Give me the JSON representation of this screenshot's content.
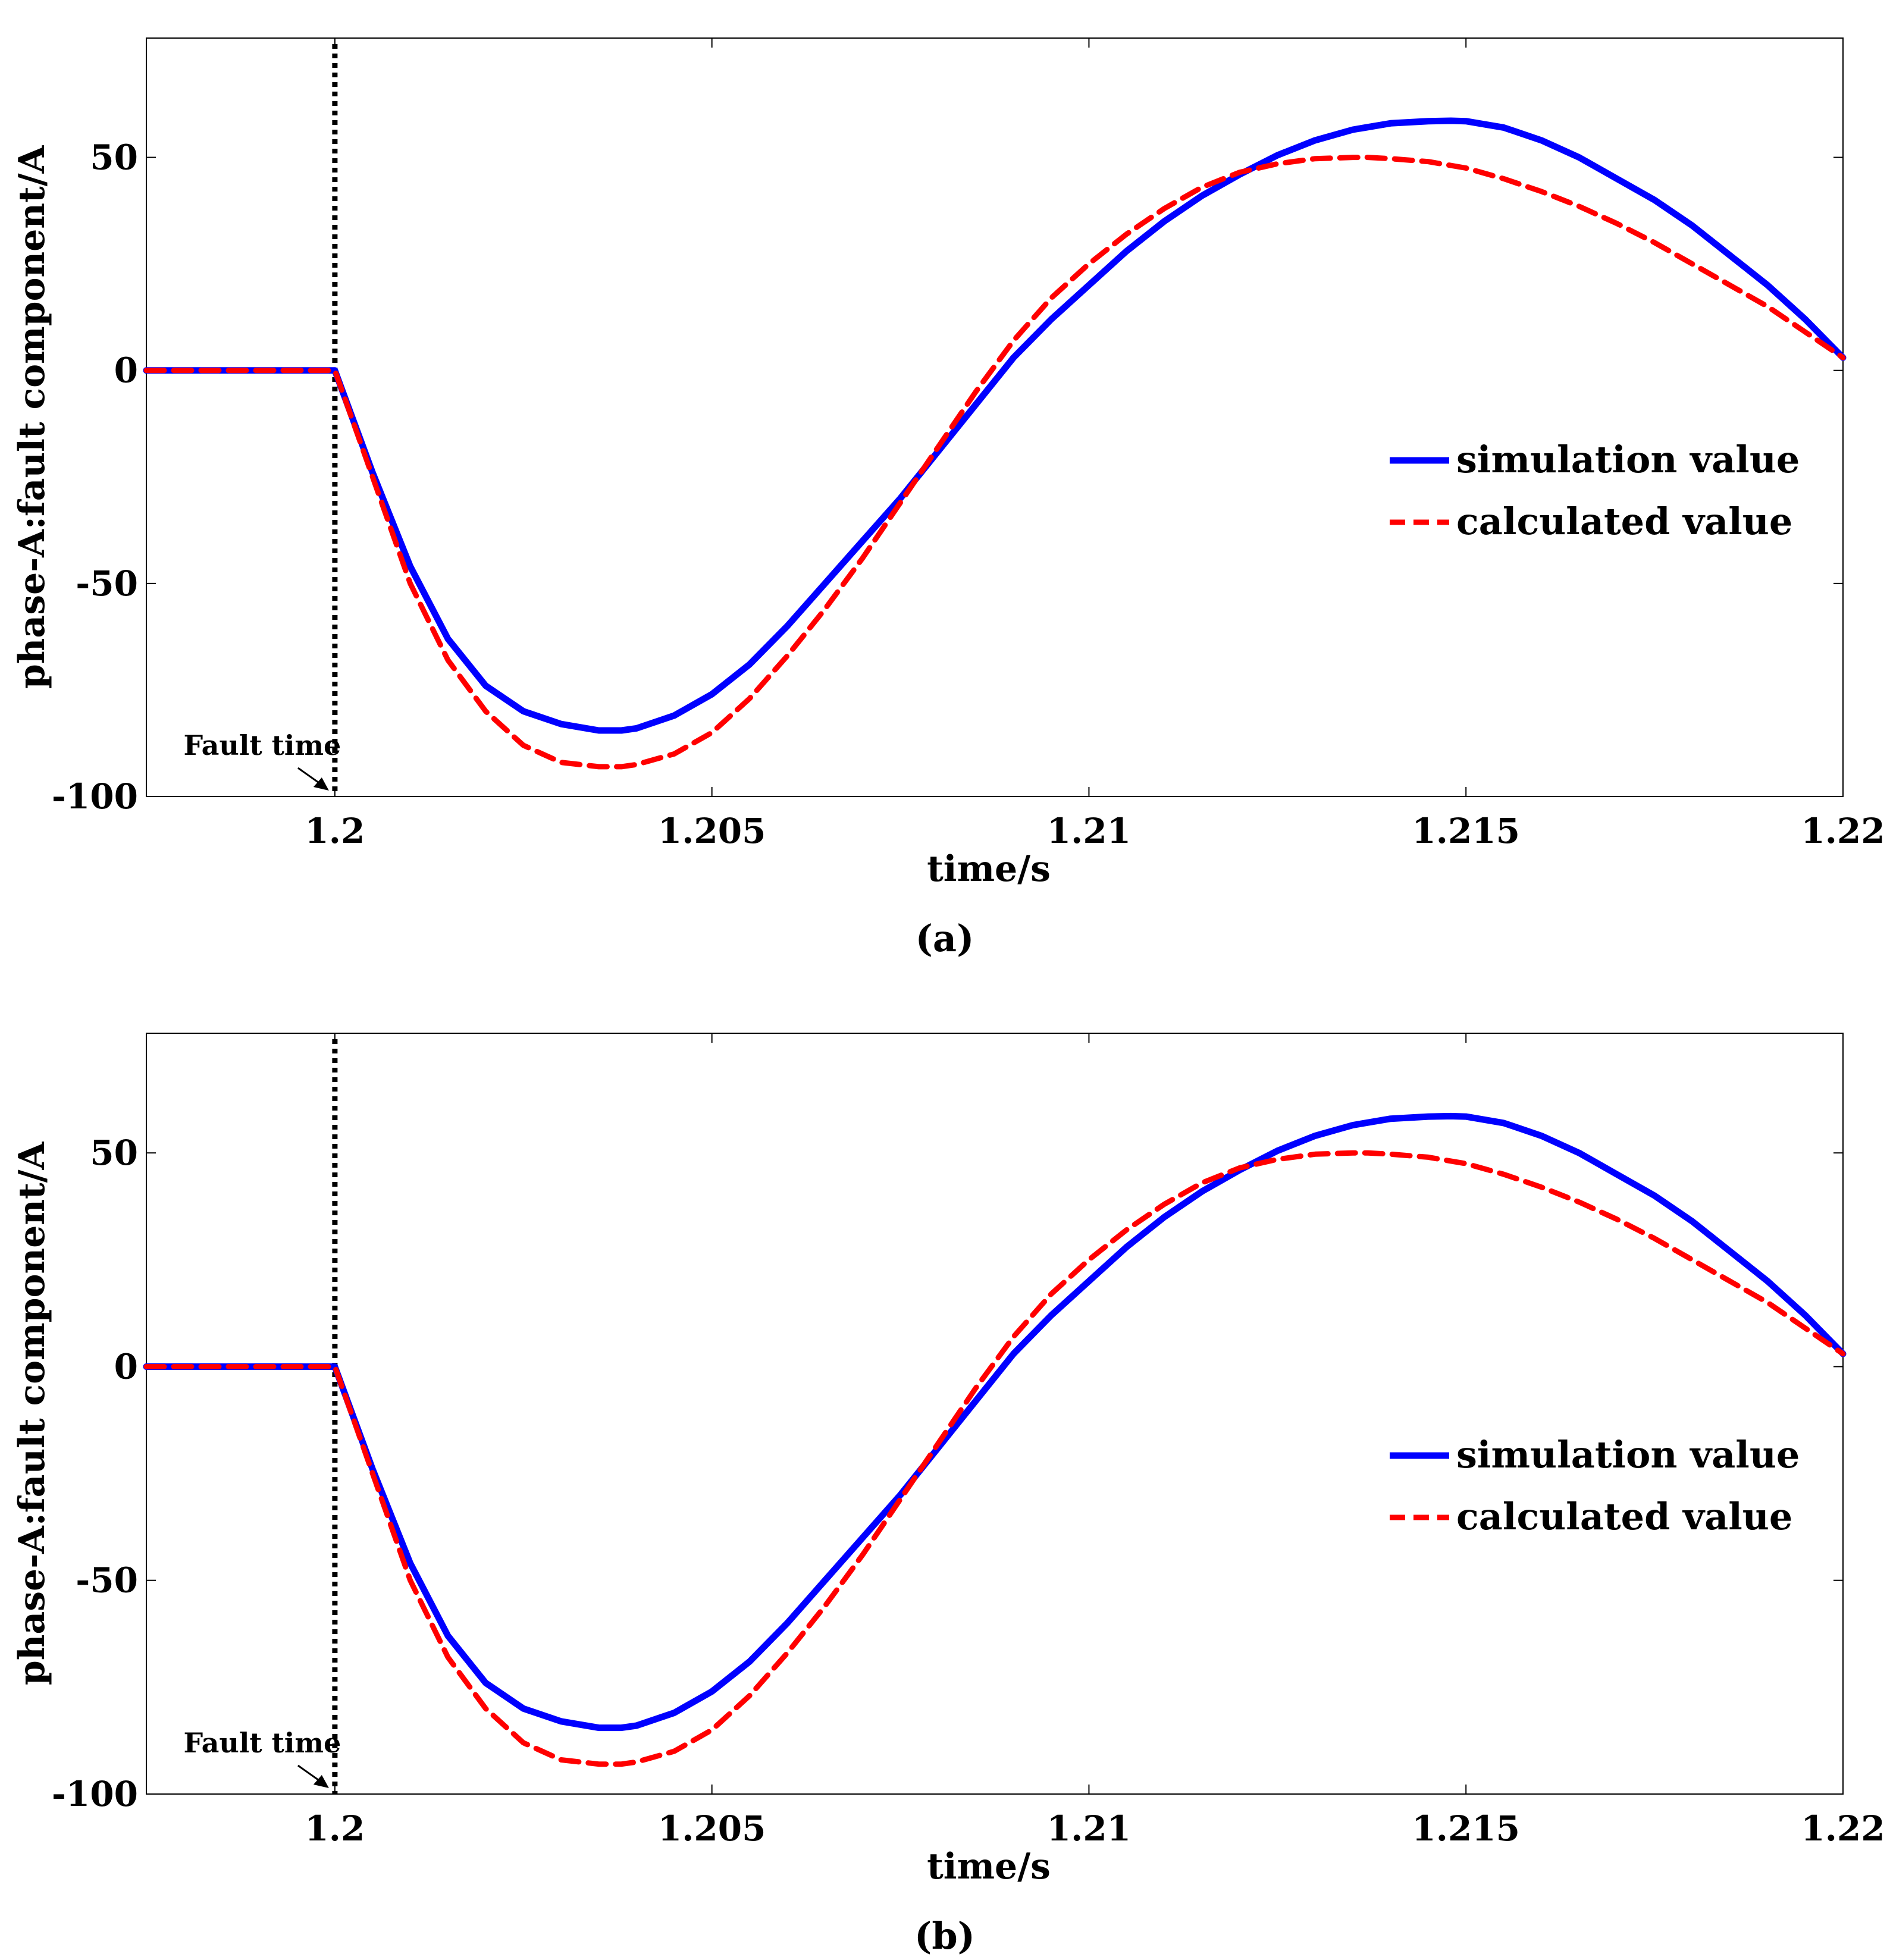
{
  "chart_data": [
    {
      "type": "line",
      "panel_label": "(a)",
      "xlabel": "time/s",
      "ylabel": "phase-A:fault component/A",
      "xlim": [
        1.1975,
        1.22
      ],
      "ylim": [
        -100,
        78
      ],
      "xticks": [
        1.2,
        1.205,
        1.21,
        1.215,
        1.22
      ],
      "xtick_labels": [
        "1.2",
        "1.205",
        "1.21",
        "1.215",
        "1.22"
      ],
      "yticks": [
        -100,
        -50,
        0,
        50
      ],
      "ytick_labels": [
        "-100",
        "-50",
        "0",
        "50"
      ],
      "grid": false,
      "legend_position": "right",
      "annotation": {
        "text": "Fault time",
        "x": 1.2
      },
      "series": [
        {
          "name": "simulation value",
          "color": "#0000ff",
          "style": "solid",
          "x": [
            1.1975,
            1.2,
            1.2005,
            1.201,
            1.2015,
            1.202,
            1.2025,
            1.203,
            1.2035,
            1.2038,
            1.204,
            1.2045,
            1.205,
            1.2055,
            1.206,
            1.2065,
            1.207,
            1.2075,
            1.208,
            1.2085,
            1.209,
            1.2095,
            1.21,
            1.2105,
            1.211,
            1.2115,
            1.212,
            1.2125,
            1.213,
            1.2135,
            1.214,
            1.2145,
            1.2148,
            1.215,
            1.2155,
            1.216,
            1.2165,
            1.217,
            1.2175,
            1.218,
            1.2185,
            1.219,
            1.2195,
            1.22
          ],
          "y": [
            0,
            0,
            -24,
            -46,
            -63,
            -74,
            -80,
            -83,
            -84.5,
            -84.5,
            -84,
            -81,
            -76,
            -69,
            -60,
            -50,
            -40,
            -30,
            -19,
            -8,
            3,
            12,
            20,
            28,
            35,
            41,
            46,
            50.5,
            54,
            56.5,
            58,
            58.5,
            58.6,
            58.5,
            57,
            54,
            50,
            45,
            40,
            34,
            27,
            20,
            12,
            3
          ]
        },
        {
          "name": "calculated value",
          "color": "#ff0000",
          "style": "dashed",
          "x": [
            1.1975,
            1.2,
            1.2005,
            1.201,
            1.2015,
            1.202,
            1.2025,
            1.203,
            1.2035,
            1.2038,
            1.204,
            1.2045,
            1.205,
            1.2055,
            1.206,
            1.2065,
            1.207,
            1.2075,
            1.208,
            1.2085,
            1.209,
            1.2095,
            1.21,
            1.2105,
            1.211,
            1.2115,
            1.212,
            1.2125,
            1.213,
            1.2135,
            1.2137,
            1.214,
            1.2145,
            1.215,
            1.2155,
            1.216,
            1.2165,
            1.217,
            1.2175,
            1.218,
            1.2185,
            1.219,
            1.2195,
            1.22
          ],
          "y": [
            0,
            0,
            -25,
            -50,
            -68,
            -80,
            -88,
            -92,
            -93,
            -93,
            -92.5,
            -90,
            -85,
            -77,
            -67,
            -56,
            -44,
            -31,
            -18,
            -5,
            7,
            17,
            25,
            32,
            38,
            43,
            46.5,
            48.5,
            49.7,
            50,
            50,
            49.7,
            49,
            47.5,
            45,
            42,
            38.5,
            34.5,
            30,
            25,
            20,
            15,
            9,
            3
          ]
        }
      ]
    },
    {
      "type": "line",
      "panel_label": "(b)",
      "xlabel": "time/s",
      "ylabel": "phase-A:fault component/A",
      "xlim": [
        1.1975,
        1.22
      ],
      "ylim": [
        -100,
        78
      ],
      "xticks": [
        1.2,
        1.205,
        1.21,
        1.215,
        1.22
      ],
      "xtick_labels": [
        "1.2",
        "1.205",
        "1.21",
        "1.215",
        "1.22"
      ],
      "yticks": [
        -100,
        -50,
        0,
        50
      ],
      "ytick_labels": [
        "-100",
        "-50",
        "0",
        "50"
      ],
      "grid": false,
      "legend_position": "right",
      "annotation": {
        "text": "Fault time",
        "x": 1.2
      },
      "series": [
        {
          "name": "simulation value",
          "color": "#0000ff",
          "style": "solid",
          "x": [
            1.1975,
            1.2,
            1.2005,
            1.201,
            1.2015,
            1.202,
            1.2025,
            1.203,
            1.2035,
            1.2038,
            1.204,
            1.2045,
            1.205,
            1.2055,
            1.206,
            1.2065,
            1.207,
            1.2075,
            1.208,
            1.2085,
            1.209,
            1.2095,
            1.21,
            1.2105,
            1.211,
            1.2115,
            1.212,
            1.2125,
            1.213,
            1.2135,
            1.214,
            1.2145,
            1.2148,
            1.215,
            1.2155,
            1.216,
            1.2165,
            1.217,
            1.2175,
            1.218,
            1.2185,
            1.219,
            1.2195,
            1.22
          ],
          "y": [
            0,
            0,
            -24,
            -46,
            -63,
            -74,
            -80,
            -83,
            -84.5,
            -84.5,
            -84,
            -81,
            -76,
            -69,
            -60,
            -50,
            -40,
            -30,
            -19,
            -8,
            3,
            12,
            20,
            28,
            35,
            41,
            46,
            50.5,
            54,
            56.5,
            58,
            58.5,
            58.6,
            58.5,
            57,
            54,
            50,
            45,
            40,
            34,
            27,
            20,
            12,
            3
          ]
        },
        {
          "name": "calculated value",
          "color": "#ff0000",
          "style": "dashed",
          "x": [
            1.1975,
            1.2,
            1.2005,
            1.201,
            1.2015,
            1.202,
            1.2025,
            1.203,
            1.2035,
            1.2038,
            1.204,
            1.2045,
            1.205,
            1.2055,
            1.206,
            1.2065,
            1.207,
            1.2075,
            1.208,
            1.2085,
            1.209,
            1.2095,
            1.21,
            1.2105,
            1.211,
            1.2115,
            1.212,
            1.2125,
            1.213,
            1.2135,
            1.2137,
            1.214,
            1.2145,
            1.215,
            1.2155,
            1.216,
            1.2165,
            1.217,
            1.2175,
            1.218,
            1.2185,
            1.219,
            1.2195,
            1.22
          ],
          "y": [
            0,
            0,
            -25,
            -50,
            -68,
            -80,
            -88,
            -92,
            -93,
            -93,
            -92.5,
            -90,
            -85,
            -77,
            -67,
            -56,
            -44,
            -31,
            -18,
            -5,
            7,
            17,
            25,
            32,
            38,
            43,
            46.5,
            48.5,
            49.7,
            50,
            50,
            49.7,
            49,
            47.5,
            45,
            42,
            38.5,
            34.5,
            30,
            25,
            20,
            15,
            9,
            3
          ]
        }
      ]
    }
  ]
}
